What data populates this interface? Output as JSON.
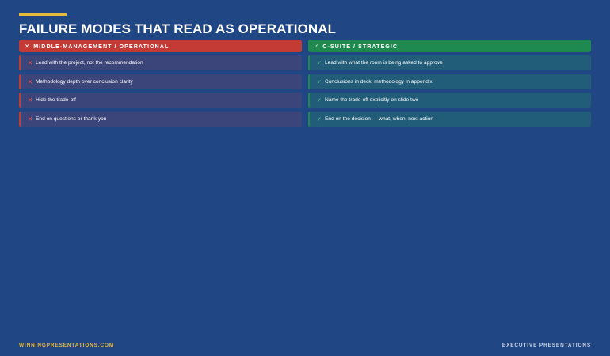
{
  "title": "FAILURE MODES THAT READ AS OPERATIONAL",
  "colors": {
    "background": "#204683",
    "accent": "#e8b83a",
    "operational": "#c43a35",
    "strategic": "#1e8a4f"
  },
  "columns": {
    "operational": {
      "icon": "x-icon",
      "header": "MIDDLE-MANAGEMENT / OPERATIONAL",
      "items": [
        "Lead with the project, not the recommendation",
        "Methodology depth over conclusion clarity",
        "Hide the trade-off",
        "End on questions or thank-you"
      ]
    },
    "strategic": {
      "icon": "check-icon",
      "header": "C-SUITE / STRATEGIC",
      "items": [
        "Lead with what the room is being asked to approve",
        "Conclusions in deck, methodology in appendix",
        "Name the trade-off explicitly on slide two",
        "End on the decision — what, when, next action"
      ]
    }
  },
  "footer": {
    "left": "WINNINGPRESENTATIONS.COM",
    "right": "EXECUTIVE PRESENTATIONS"
  }
}
